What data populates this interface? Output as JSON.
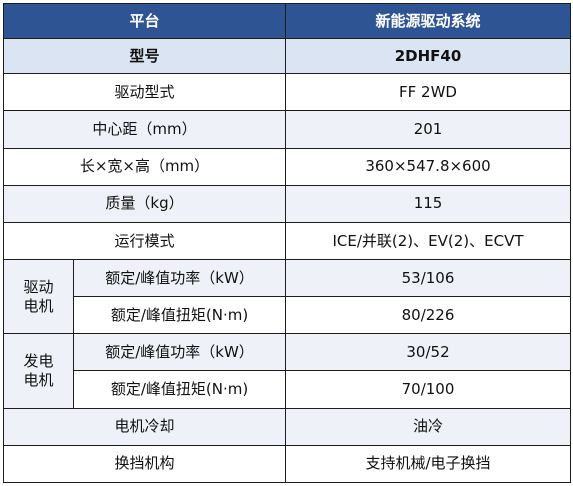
{
  "header": {
    "left": "平台",
    "right": "新能源驱动系统"
  },
  "model": {
    "label": "型号",
    "value": "2DHF40"
  },
  "rows": [
    {
      "label": "驱动型式",
      "value": "FF 2WD"
    },
    {
      "label": "中心距（mm）",
      "value": "201"
    },
    {
      "label": "长×宽×高（mm）",
      "value": "360×547.8×600"
    },
    {
      "label": "质量（kg）",
      "value": "115"
    },
    {
      "label": "运行模式",
      "value": "ICE/并联(2)、EV(2)、ECVT"
    }
  ],
  "groups": [
    {
      "label_line1": "驱动",
      "label_line2": "电机",
      "items": [
        {
          "label": "额定/峰值功率（kW）",
          "value": "53/106"
        },
        {
          "label": "额定/峰值扭矩(N·m)",
          "value": "80/226"
        }
      ]
    },
    {
      "label_line1": "发电",
      "label_line2": "电机",
      "items": [
        {
          "label": "额定/峰值功率（kW）",
          "value": "30/52"
        },
        {
          "label": "额定/峰值扭矩(N·m)",
          "value": "70/100"
        }
      ]
    }
  ],
  "tail_rows": [
    {
      "label": "电机冷却",
      "value": "油冷"
    },
    {
      "label": "换挡机构",
      "value": "支持机械/电子换挡"
    }
  ]
}
